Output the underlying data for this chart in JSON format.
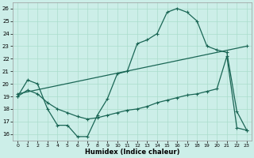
{
  "xlabel": "Humidex (Indice chaleur)",
  "background_color": "#cceee8",
  "grid_color": "#aaddcc",
  "line_color": "#1a6655",
  "xlim": [
    -0.5,
    23.5
  ],
  "ylim": [
    15.5,
    26.5
  ],
  "xticks": [
    0,
    1,
    2,
    3,
    4,
    5,
    6,
    7,
    8,
    9,
    10,
    11,
    12,
    13,
    14,
    15,
    16,
    17,
    18,
    19,
    20,
    21,
    22,
    23
  ],
  "yticks": [
    16,
    17,
    18,
    19,
    20,
    21,
    22,
    23,
    24,
    25,
    26
  ],
  "line1_x": [
    0,
    1,
    2,
    3,
    4,
    5,
    6,
    7,
    8,
    9,
    10,
    11,
    12,
    13,
    14,
    15,
    16,
    17,
    18,
    19,
    20,
    21,
    22,
    23
  ],
  "line1_y": [
    19.0,
    20.3,
    20.0,
    18.0,
    16.7,
    16.7,
    15.8,
    15.8,
    17.5,
    18.8,
    20.8,
    21.0,
    23.2,
    23.5,
    24.0,
    25.7,
    26.0,
    25.7,
    25.0,
    23.0,
    22.7,
    22.5,
    17.8,
    16.3
  ],
  "line2_x": [
    0,
    23
  ],
  "line2_y": [
    19.2,
    23.0
  ],
  "line3_x": [
    0,
    1,
    2,
    3,
    4,
    5,
    6,
    7,
    8,
    9,
    10,
    11,
    12,
    13,
    14,
    15,
    16,
    17,
    18,
    19,
    20,
    21,
    22,
    23
  ],
  "line3_y": [
    19.0,
    19.5,
    19.2,
    18.5,
    18.0,
    17.7,
    17.4,
    17.2,
    17.3,
    17.5,
    17.7,
    17.9,
    18.0,
    18.2,
    18.5,
    18.7,
    18.9,
    19.1,
    19.2,
    19.4,
    19.6,
    22.2,
    16.5,
    16.3
  ]
}
